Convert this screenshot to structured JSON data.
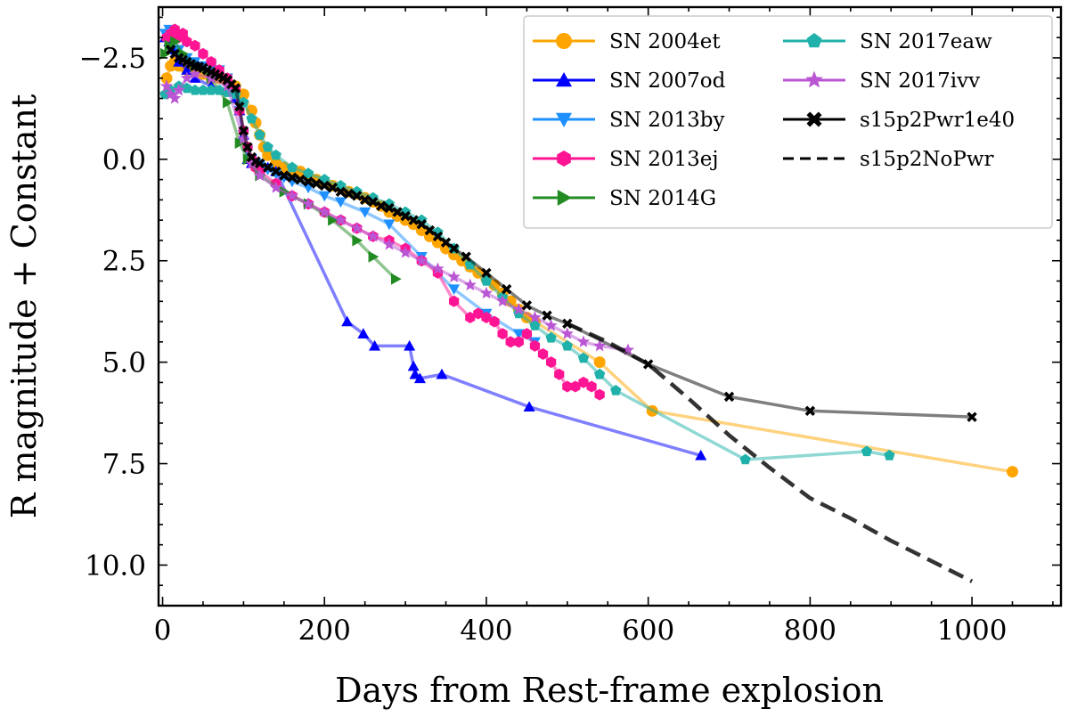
{
  "chart_data": {
    "type": "line",
    "title": "",
    "xlabel": "Days from Rest-frame explosion",
    "ylabel": "R magnitude + Constant",
    "xlim": [
      -5,
      1110
    ],
    "ylim": [
      11.0,
      -3.75
    ],
    "y_inverted": true,
    "xticks": [
      0,
      200,
      400,
      600,
      800,
      1000
    ],
    "xtick_labels": [
      "0",
      "200",
      "400",
      "600",
      "800",
      "1000"
    ],
    "yticks": [
      -2.5,
      0.0,
      2.5,
      5.0,
      7.5,
      10.0
    ],
    "ytick_labels": [
      "−2.5",
      "0.0",
      "2.5",
      "5.0",
      "7.5",
      "10.0"
    ],
    "grid": false,
    "legend_position": "top-right",
    "series": [
      {
        "name": "SN 2004et",
        "color": "#FFA500",
        "marker": "circle",
        "linestyle": "solid",
        "x": [
          5,
          10,
          15,
          20,
          30,
          40,
          50,
          60,
          70,
          80,
          90,
          100,
          110,
          115,
          120,
          125,
          130,
          140,
          150,
          160,
          170,
          180,
          190,
          200,
          210,
          220,
          230,
          240,
          250,
          260,
          270,
          280,
          290,
          300,
          310,
          320,
          330,
          340,
          350,
          360,
          370,
          380,
          390,
          400,
          410,
          420,
          430,
          440,
          450,
          460,
          540,
          605,
          1050
        ],
        "y": [
          -2.0,
          -2.3,
          -2.4,
          -2.3,
          -2.2,
          -2.2,
          -2.1,
          -2.0,
          -2.0,
          -1.9,
          -1.8,
          -1.6,
          -1.2,
          -0.9,
          -0.6,
          -0.3,
          -0.1,
          0.1,
          0.2,
          0.25,
          0.3,
          0.4,
          0.5,
          0.55,
          0.65,
          0.7,
          0.8,
          0.85,
          0.95,
          1.05,
          1.15,
          1.3,
          1.4,
          1.5,
          1.6,
          1.75,
          1.9,
          2.05,
          2.2,
          2.35,
          2.5,
          2.65,
          2.8,
          2.95,
          3.1,
          3.3,
          3.5,
          3.7,
          3.9,
          4.0,
          5.0,
          6.2,
          7.7
        ]
      },
      {
        "name": "SN 2007od",
        "color": "#0000FF",
        "marker": "triangle-up",
        "linestyle": "solid",
        "x": [
          3,
          8,
          13,
          20,
          30,
          40,
          60,
          80,
          90,
          95,
          100,
          105,
          110,
          120,
          130,
          140,
          228,
          248,
          262,
          305,
          310,
          312,
          318,
          345,
          453,
          665
        ],
        "y": [
          -3.0,
          -2.9,
          -2.7,
          -2.4,
          -2.2,
          -2.0,
          -1.8,
          -1.7,
          -1.5,
          -1.2,
          -0.6,
          0.0,
          0.1,
          0.15,
          0.2,
          0.3,
          4.0,
          4.3,
          4.6,
          4.6,
          5.1,
          5.3,
          5.4,
          5.3,
          6.1,
          7.3
        ]
      },
      {
        "name": "SN 2013by",
        "color": "#1E90FF",
        "marker": "triangle-down",
        "linestyle": "solid",
        "x": [
          3,
          8,
          13,
          20,
          30,
          40,
          50,
          60,
          70,
          80,
          90,
          95,
          100,
          105,
          110,
          115,
          120,
          130,
          140,
          150,
          160,
          180,
          200,
          220,
          250,
          280,
          320,
          360,
          400,
          440,
          460
        ],
        "y": [
          -3.1,
          -3.2,
          -3.0,
          -2.7,
          -2.5,
          -2.4,
          -2.3,
          -2.3,
          -2.2,
          -2.0,
          -1.7,
          -1.2,
          -0.6,
          -0.2,
          0.0,
          0.1,
          0.15,
          0.25,
          0.35,
          0.45,
          0.55,
          0.7,
          0.9,
          1.05,
          1.3,
          1.6,
          2.4,
          3.2,
          3.8,
          4.3,
          4.5
        ]
      },
      {
        "name": "SN 2013ej",
        "color": "#FF1493",
        "marker": "hexagon",
        "linestyle": "solid",
        "x": [
          5,
          10,
          15,
          20,
          25,
          30,
          40,
          50,
          60,
          70,
          80,
          90,
          95,
          100,
          105,
          110,
          115,
          120,
          140,
          160,
          180,
          200,
          220,
          240,
          260,
          280,
          300,
          320,
          340,
          360,
          380,
          390,
          400,
          410,
          420,
          430,
          440,
          450,
          460,
          470,
          480,
          490,
          500,
          510,
          520,
          530,
          540
        ],
        "y": [
          -3.0,
          -3.1,
          -3.2,
          -3.0,
          -3.1,
          -2.9,
          -2.8,
          -2.6,
          -2.4,
          -2.2,
          -2.0,
          -1.7,
          -1.2,
          -0.7,
          -0.3,
          0.0,
          0.2,
          0.3,
          0.6,
          0.9,
          1.1,
          1.3,
          1.5,
          1.7,
          1.9,
          2.0,
          2.2,
          2.5,
          2.8,
          3.5,
          3.9,
          3.8,
          3.9,
          4.0,
          4.3,
          4.5,
          4.5,
          4.3,
          4.6,
          4.8,
          5.0,
          5.3,
          5.6,
          5.6,
          5.5,
          5.6,
          5.8
        ]
      },
      {
        "name": "SN 2014G",
        "color": "#228B22",
        "marker": "triangle-right",
        "linestyle": "solid",
        "x": [
          3,
          8,
          15,
          25,
          40,
          60,
          80,
          95,
          105,
          120,
          150,
          180,
          210,
          240,
          260,
          288
        ],
        "y": [
          -2.6,
          -2.8,
          -2.9,
          -2.6,
          -2.3,
          -2.0,
          -1.4,
          -0.4,
          0.0,
          0.4,
          0.8,
          1.1,
          1.5,
          2.0,
          2.4,
          2.95
        ]
      },
      {
        "name": "SN 2017eaw",
        "color": "#20B2AA",
        "marker": "pentagon",
        "linestyle": "solid",
        "x": [
          3,
          10,
          20,
          30,
          40,
          50,
          60,
          70,
          80,
          90,
          100,
          110,
          120,
          130,
          140,
          160,
          180,
          200,
          220,
          240,
          260,
          280,
          300,
          320,
          340,
          360,
          380,
          400,
          420,
          440,
          460,
          480,
          500,
          520,
          540,
          560,
          720,
          870,
          898
        ],
        "y": [
          -1.6,
          -1.7,
          -1.8,
          -1.75,
          -1.7,
          -1.7,
          -1.7,
          -1.7,
          -1.65,
          -1.6,
          -1.4,
          -1.0,
          -0.6,
          -0.3,
          -0.1,
          0.2,
          0.35,
          0.5,
          0.65,
          0.8,
          0.95,
          1.1,
          1.3,
          1.5,
          1.8,
          2.2,
          2.6,
          3.0,
          3.4,
          3.8,
          4.1,
          4.4,
          4.6,
          4.9,
          5.3,
          5.7,
          7.4,
          7.2,
          7.3
        ]
      },
      {
        "name": "SN 2017ivv",
        "color": "#BA55D3",
        "marker": "star",
        "linestyle": "solid",
        "x": [
          5,
          10,
          15,
          20,
          30,
          40,
          60,
          80,
          100,
          110,
          120,
          140,
          160,
          180,
          200,
          220,
          240,
          260,
          280,
          300,
          320,
          340,
          360,
          380,
          400,
          420,
          440,
          460,
          480,
          500,
          520,
          540,
          575
        ],
        "y": [
          -1.8,
          -1.6,
          -1.5,
          -1.7,
          -2.0,
          -2.1,
          -2.0,
          -1.8,
          -0.5,
          0.1,
          0.4,
          0.7,
          0.9,
          1.1,
          1.3,
          1.5,
          1.7,
          1.9,
          2.1,
          2.3,
          2.5,
          2.7,
          2.9,
          3.1,
          3.3,
          3.5,
          3.7,
          3.9,
          4.1,
          4.3,
          4.5,
          4.6,
          4.7
        ]
      },
      {
        "name": "s15p2Pwr1e40",
        "color": "#000000",
        "marker": "X",
        "linestyle": "solid",
        "x": [
          10,
          15,
          20,
          25,
          30,
          35,
          40,
          45,
          50,
          55,
          60,
          65,
          70,
          75,
          80,
          85,
          90,
          95,
          100,
          105,
          110,
          115,
          120,
          130,
          140,
          150,
          160,
          170,
          180,
          190,
          200,
          210,
          220,
          230,
          240,
          250,
          260,
          270,
          280,
          290,
          300,
          310,
          320,
          330,
          340,
          350,
          360,
          375,
          400,
          425,
          450,
          475,
          500,
          600,
          700,
          800,
          1000
        ],
        "y": [
          -2.7,
          -2.6,
          -2.5,
          -2.45,
          -2.4,
          -2.35,
          -2.3,
          -2.28,
          -2.25,
          -2.2,
          -2.15,
          -2.1,
          -2.05,
          -2.0,
          -1.95,
          -1.85,
          -1.75,
          -1.3,
          -0.7,
          -0.3,
          -0.05,
          0.05,
          0.1,
          0.2,
          0.3,
          0.4,
          0.45,
          0.5,
          0.55,
          0.6,
          0.65,
          0.7,
          0.8,
          0.85,
          0.9,
          1.0,
          1.05,
          1.15,
          1.2,
          1.3,
          1.4,
          1.5,
          1.6,
          1.75,
          1.9,
          2.05,
          2.2,
          2.4,
          2.8,
          3.2,
          3.6,
          3.85,
          4.05,
          5.05,
          5.85,
          6.2,
          6.35
        ]
      },
      {
        "name": "s15p2NoPwr",
        "color": "#000000",
        "marker": "none",
        "linestyle": "dashed",
        "x": [
          500,
          550,
          600,
          650,
          700,
          750,
          800,
          850,
          900,
          950,
          1000
        ],
        "y": [
          4.05,
          4.5,
          5.05,
          5.9,
          6.8,
          7.6,
          8.35,
          8.85,
          9.4,
          9.9,
          10.4
        ]
      }
    ]
  }
}
